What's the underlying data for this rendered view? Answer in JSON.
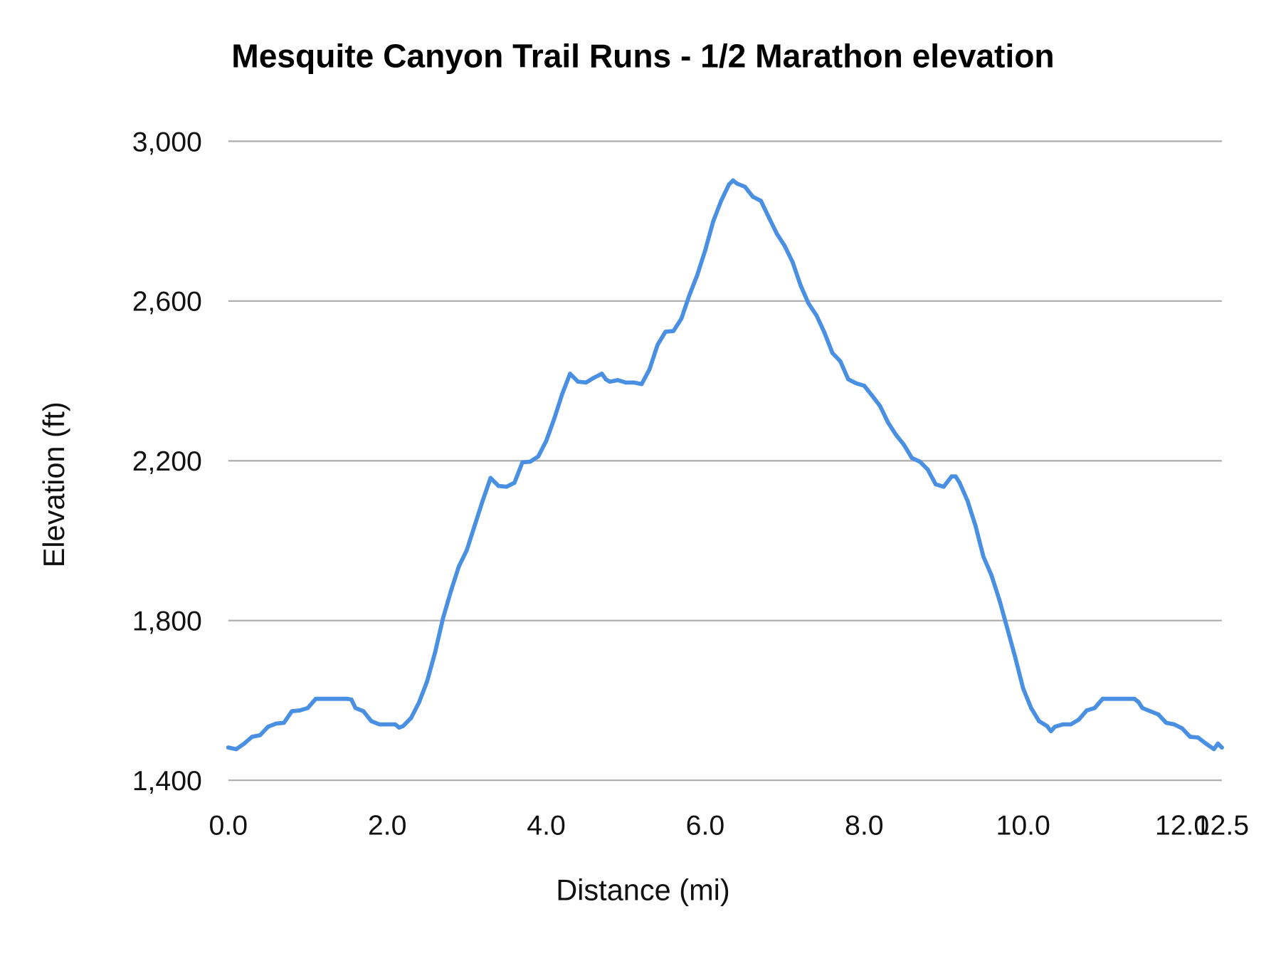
{
  "chart_data": {
    "type": "line",
    "title": "Mesquite Canyon Trail Runs - 1/2 Marathon elevation",
    "xlabel": "Distance (mi)",
    "ylabel": "Elevation (ft)",
    "xlim": [
      0,
      12.5
    ],
    "ylim": [
      1400,
      3000
    ],
    "x_ticks": [
      "0.0",
      "2.0",
      "4.0",
      "6.0",
      "8.0",
      "10.0",
      "12.0",
      "12.5"
    ],
    "x_tick_values": [
      0,
      2,
      4,
      6,
      8,
      10,
      12,
      12.5
    ],
    "y_ticks": [
      "1,400",
      "1,800",
      "2,200",
      "2,600",
      "3,000"
    ],
    "y_tick_values": [
      1400,
      1800,
      2200,
      2600,
      3000
    ],
    "grid": "horizontal",
    "legend": "none",
    "line_color": "#4a90e2",
    "series": [
      {
        "x": [
          0,
          0.1,
          0.2,
          0.3,
          0.4,
          0.5,
          0.6,
          0.7,
          0.8,
          0.9,
          1.0,
          1.1,
          1.2,
          1.3,
          1.4,
          1.5,
          1.55,
          1.6,
          1.7,
          1.8,
          1.9,
          2.0,
          2.1,
          2.15,
          2.2,
          2.3,
          2.4,
          2.5,
          2.6,
          2.7,
          2.8,
          2.9,
          3.0,
          3.1,
          3.2,
          3.3,
          3.4,
          3.5,
          3.6,
          3.7,
          3.8,
          3.9,
          4.0,
          4.1,
          4.2,
          4.3,
          4.4,
          4.5,
          4.6,
          4.7,
          4.75,
          4.8,
          4.9,
          5.0,
          5.1,
          5.2,
          5.3,
          5.4,
          5.5,
          5.6,
          5.7,
          5.8,
          5.9,
          6.0,
          6.1,
          6.2,
          6.3,
          6.35,
          6.4,
          6.5,
          6.6,
          6.7,
          6.8,
          6.9,
          7.0,
          7.1,
          7.2,
          7.3,
          7.4,
          7.5,
          7.6,
          7.7,
          7.8,
          7.9,
          8.0,
          8.1,
          8.2,
          8.3,
          8.4,
          8.5,
          8.6,
          8.7,
          8.8,
          8.9,
          9.0,
          9.1,
          9.15,
          9.2,
          9.3,
          9.4,
          9.5,
          9.6,
          9.7,
          9.8,
          9.9,
          10.0,
          10.1,
          10.2,
          10.3,
          10.35,
          10.4,
          10.5,
          10.6,
          10.7,
          10.8,
          10.9,
          11.0,
          11.1,
          11.2,
          11.3,
          11.4,
          11.45,
          11.5,
          11.6,
          11.7,
          11.8,
          11.9,
          12.0,
          12.1,
          12.2,
          12.3,
          12.4,
          12.45,
          12.5
        ],
        "y": [
          1482,
          1478,
          1492,
          1509,
          1513,
          1534,
          1542,
          1544,
          1573,
          1575,
          1581,
          1604,
          1604,
          1604,
          1604,
          1604,
          1602,
          1581,
          1573,
          1548,
          1540,
          1540,
          1540,
          1532,
          1536,
          1556,
          1595,
          1647,
          1719,
          1805,
          1873,
          1935,
          1976,
          2038,
          2100,
          2157,
          2137,
          2135,
          2145,
          2196,
          2198,
          2211,
          2250,
          2305,
          2367,
          2418,
          2398,
          2396,
          2408,
          2418,
          2404,
          2398,
          2402,
          2396,
          2396,
          2392,
          2429,
          2490,
          2523,
          2525,
          2556,
          2614,
          2665,
          2727,
          2799,
          2851,
          2892,
          2902,
          2894,
          2886,
          2861,
          2851,
          2810,
          2769,
          2738,
          2697,
          2639,
          2594,
          2564,
          2521,
          2470,
          2449,
          2404,
          2394,
          2388,
          2363,
          2337,
          2296,
          2265,
          2240,
          2207,
          2198,
          2178,
          2141,
          2135,
          2161,
          2161,
          2145,
          2100,
          2038,
          1960,
          1914,
          1852,
          1781,
          1708,
          1630,
          1581,
          1548,
          1536,
          1523,
          1534,
          1540,
          1540,
          1552,
          1575,
          1581,
          1604,
          1604,
          1604,
          1604,
          1604,
          1596,
          1581,
          1573,
          1565,
          1544,
          1540,
          1530,
          1509,
          1507,
          1492,
          1478,
          1492,
          1482
        ]
      }
    ]
  }
}
